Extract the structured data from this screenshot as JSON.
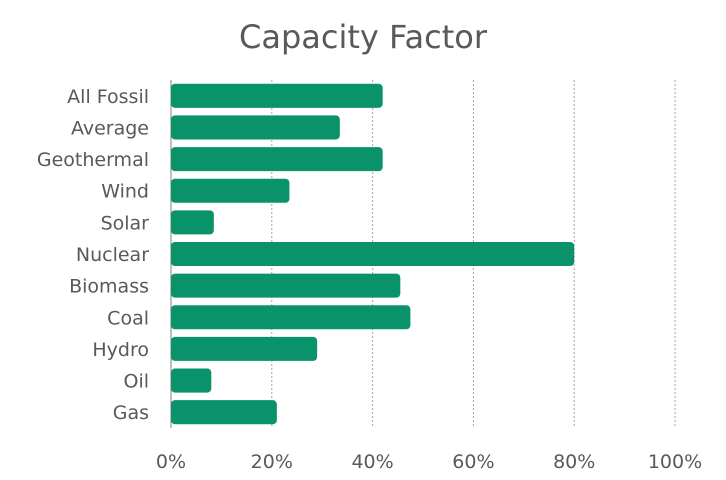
{
  "chart_data": {
    "type": "bar",
    "orientation": "horizontal",
    "title": "Capacity Factor",
    "categories": [
      "All Fossil",
      "Average",
      "Geothermal",
      "Wind",
      "Solar",
      "Nuclear",
      "Biomass",
      "Coal",
      "Hydro",
      "Oil",
      "Gas"
    ],
    "values": [
      42,
      33.5,
      42,
      23.5,
      8.5,
      80,
      45.5,
      47.5,
      29,
      8,
      21
    ],
    "xlim": [
      0,
      100
    ],
    "xticks": [
      "0%",
      "20%",
      "40%",
      "60%",
      "80%",
      "100%"
    ],
    "tick_values": [
      0,
      20,
      40,
      60,
      80,
      100
    ],
    "bar_color": "#0a936b",
    "grid": true,
    "legend": false
  }
}
